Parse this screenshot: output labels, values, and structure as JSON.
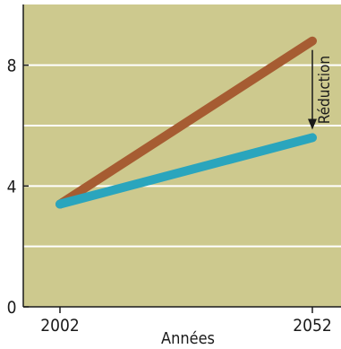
{
  "chart_data": {
    "type": "line",
    "title": "",
    "xlabel": "Années",
    "ylabel": "",
    "x": [
      2002,
      2052
    ],
    "xlim": [
      2002,
      2052
    ],
    "ylim": [
      0,
      10
    ],
    "xticks": [
      "2002",
      "2052"
    ],
    "yticks": [
      "0",
      "4",
      "8"
    ],
    "grid": true,
    "series": [
      {
        "values": [
          3.4,
          8.8
        ],
        "color": "#a65c32"
      },
      {
        "values": [
          3.4,
          5.6
        ],
        "color": "#2aa5bd"
      }
    ],
    "annotations": [
      {
        "label": "Réduction",
        "x": 2052,
        "y_from": 8.8,
        "y_to": 5.6
      }
    ],
    "colors": {
      "background": "#cdc98e",
      "gridline": "#ffffff",
      "axis": "#1a1a1a"
    }
  }
}
